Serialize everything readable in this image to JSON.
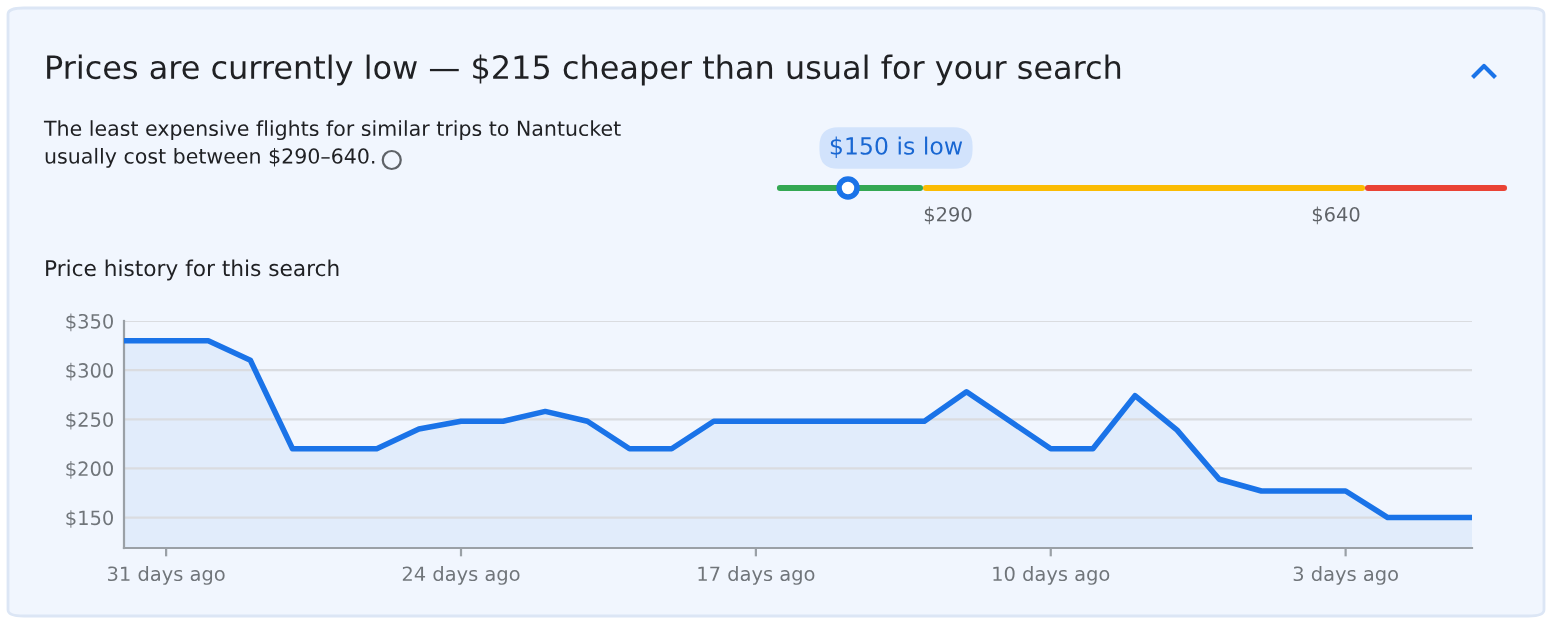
{
  "chart_data": [
    {
      "type": "other",
      "title": "Prices are currently low — $215 cheaper than usual for your search",
      "subtitle": "The least expensive flights for similar trips to Nantucket\nusually cost between $290–640.",
      "annotations": [
        "$150 is low",
        "$290",
        "$640"
      ]
    },
    {
      "type": "area",
      "title": "Price history for this search",
      "x": [
        -32,
        -31,
        -30,
        -29,
        -28,
        -27,
        -26,
        -25,
        -24,
        -23,
        -22,
        -21,
        -20,
        -19,
        -18,
        -17,
        -16,
        -15,
        -14,
        -13,
        -12,
        -11,
        -10,
        -9,
        -8,
        -7,
        -6,
        -5,
        -4,
        -3,
        -2,
        -1,
        0
      ],
      "series": [
        {
          "color": "#1a73e8",
          "values": [
            330,
            330,
            330,
            310,
            220,
            220,
            220,
            240,
            248,
            248,
            258,
            248,
            220,
            220,
            248,
            248,
            248,
            248,
            248,
            248,
            278,
            249,
            220,
            220,
            274,
            239,
            189,
            177,
            177,
            177,
            150,
            150,
            150
          ]
        }
      ],
      "xlim": [
        -32,
        0
      ],
      "ylim": [
        119,
        350
      ],
      "xticks": [
        {
          "value": -31,
          "label": "31 days ago"
        },
        {
          "value": -24,
          "label": "24 days ago"
        },
        {
          "value": -17,
          "label": "17 days ago"
        },
        {
          "value": -10,
          "label": "10 days ago"
        },
        {
          "value": -3,
          "label": "3 days ago"
        }
      ],
      "yticks": [
        {
          "value": 150,
          "label": "$150"
        },
        {
          "value": 200,
          "label": "$200"
        },
        {
          "value": 250,
          "label": "$250"
        },
        {
          "value": 300,
          "label": "$300"
        },
        {
          "value": 350,
          "label": "$350"
        }
      ],
      "grid": "y",
      "legend": false
    }
  ]
}
